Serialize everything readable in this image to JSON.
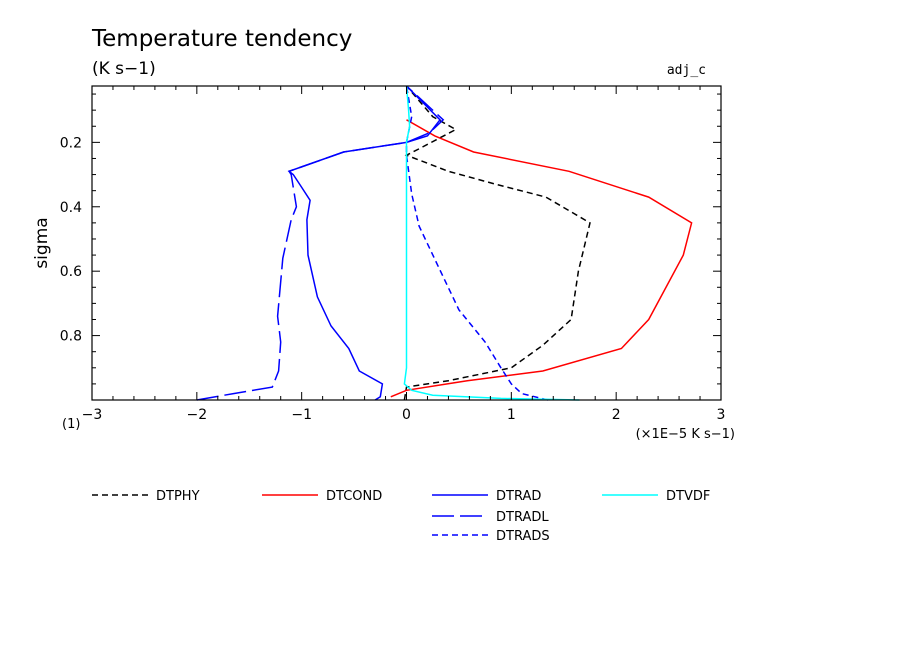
{
  "chart_data": {
    "type": "line",
    "title": "Temperature tendency",
    "subtitle": "(K s−1)",
    "tag": "adj_c",
    "xlabel": "",
    "ylabel": "sigma",
    "x_unit_label": "(×1E−5 K s−1)",
    "y_unit_label": "(1)",
    "xlim": [
      -3,
      3
    ],
    "ylim": [
      1.0,
      0.025
    ],
    "y_inverted": true,
    "x_ticks": [
      -3,
      -2,
      -1,
      0,
      1,
      2,
      3
    ],
    "x_tick_labels": [
      "−3",
      "−2",
      "−1",
      "0",
      "1",
      "2",
      "3"
    ],
    "y_ticks": [
      0.2,
      0.4,
      0.6,
      0.8
    ],
    "y_tick_labels": [
      "0.2",
      "0.4",
      "0.6",
      "0.8"
    ],
    "grid": false,
    "legend_position": "bottom",
    "series": [
      {
        "name": "DTPHY",
        "color": "#000000",
        "dash": "short",
        "points": [
          [
            -0.02,
            1.0
          ],
          [
            0.0,
            0.96
          ],
          [
            0.4,
            0.94
          ],
          [
            1.0,
            0.9
          ],
          [
            1.3,
            0.83
          ],
          [
            1.57,
            0.75
          ],
          [
            1.64,
            0.6
          ],
          [
            1.75,
            0.45
          ],
          [
            1.33,
            0.37
          ],
          [
            0.85,
            0.33
          ],
          [
            0.4,
            0.29
          ],
          [
            0.0,
            0.24
          ],
          [
            0.12,
            0.22
          ],
          [
            0.47,
            0.16
          ],
          [
            0.25,
            0.12
          ],
          [
            0.0,
            0.025
          ]
        ]
      },
      {
        "name": "DTCOND",
        "color": "#ff0000",
        "dash": "solid",
        "points": [
          [
            -0.15,
            0.99
          ],
          [
            0.0,
            0.97
          ],
          [
            0.58,
            0.94
          ],
          [
            1.3,
            0.91
          ],
          [
            2.05,
            0.84
          ],
          [
            2.31,
            0.75
          ],
          [
            2.64,
            0.55
          ],
          [
            2.72,
            0.45
          ],
          [
            2.31,
            0.37
          ],
          [
            1.55,
            0.29
          ],
          [
            0.64,
            0.23
          ],
          [
            0.27,
            0.18
          ],
          [
            0.0,
            0.13
          ]
        ]
      },
      {
        "name": "DTRAD",
        "color": "#0000ff",
        "dash": "solid",
        "points": [
          [
            -0.3,
            1.0
          ],
          [
            -0.25,
            0.99
          ],
          [
            -0.23,
            0.95
          ],
          [
            -0.45,
            0.91
          ],
          [
            -0.55,
            0.84
          ],
          [
            -0.72,
            0.77
          ],
          [
            -0.85,
            0.68
          ],
          [
            -0.94,
            0.55
          ],
          [
            -0.95,
            0.44
          ],
          [
            -0.92,
            0.38
          ],
          [
            -1.0,
            0.34
          ],
          [
            -1.08,
            0.3
          ],
          [
            -1.12,
            0.29
          ],
          [
            -0.6,
            0.23
          ],
          [
            0.0,
            0.2
          ],
          [
            0.2,
            0.18
          ],
          [
            0.32,
            0.13
          ],
          [
            0.0,
            0.025
          ]
        ]
      },
      {
        "name": "DTRADL",
        "color": "#0000ff",
        "dash": "long",
        "points": [
          [
            -2.0,
            1.0
          ],
          [
            -1.65,
            0.98
          ],
          [
            -1.28,
            0.96
          ],
          [
            -1.22,
            0.91
          ],
          [
            -1.2,
            0.82
          ],
          [
            -1.23,
            0.74
          ],
          [
            -1.18,
            0.56
          ],
          [
            -1.1,
            0.44
          ],
          [
            -1.05,
            0.4
          ],
          [
            -1.1,
            0.3
          ],
          [
            -1.12,
            0.29
          ],
          [
            -0.6,
            0.23
          ],
          [
            0.0,
            0.2
          ],
          [
            0.22,
            0.17
          ],
          [
            0.35,
            0.13
          ],
          [
            0.0,
            0.025
          ]
        ]
      },
      {
        "name": "DTRADS",
        "color": "#0000ff",
        "dash": "short",
        "points": [
          [
            1.35,
            1.0
          ],
          [
            1.1,
            0.98
          ],
          [
            1.0,
            0.95
          ],
          [
            0.9,
            0.9
          ],
          [
            0.75,
            0.82
          ],
          [
            0.5,
            0.72
          ],
          [
            0.28,
            0.57
          ],
          [
            0.12,
            0.46
          ],
          [
            0.05,
            0.36
          ],
          [
            0.0,
            0.24
          ],
          [
            0.0,
            0.2
          ],
          [
            0.05,
            0.12
          ],
          [
            0.0,
            0.025
          ]
        ]
      },
      {
        "name": "DTVDF",
        "color": "#00ffff",
        "dash": "solid",
        "points": [
          [
            1.65,
            1.0
          ],
          [
            0.9,
            0.995
          ],
          [
            0.25,
            0.985
          ],
          [
            0.05,
            0.97
          ],
          [
            -0.02,
            0.95
          ],
          [
            0.0,
            0.9
          ],
          [
            0.0,
            0.2
          ],
          [
            0.03,
            0.15
          ],
          [
            0.02,
            0.1
          ],
          [
            0.0,
            0.025
          ]
        ]
      }
    ]
  },
  "legend_rows": [
    [
      {
        "name": "DTPHY",
        "color": "#000000",
        "dash": "short"
      },
      {
        "name": "DTCOND",
        "color": "#ff0000",
        "dash": "solid"
      },
      {
        "name": "DTRAD",
        "color": "#0000ff",
        "dash": "solid"
      },
      {
        "name": "DTVDF",
        "color": "#00ffff",
        "dash": "solid"
      }
    ],
    [
      {
        "name": "DTRADL",
        "color": "#0000ff",
        "dash": "long"
      }
    ],
    [
      {
        "name": "DTRADS",
        "color": "#0000ff",
        "dash": "short"
      }
    ]
  ]
}
